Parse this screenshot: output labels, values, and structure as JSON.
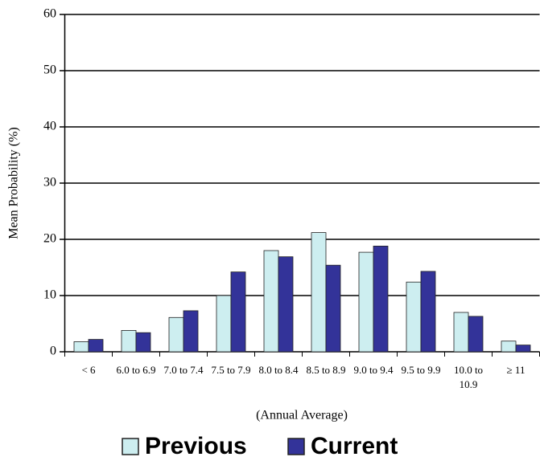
{
  "chart_data": {
    "type": "bar",
    "categories": [
      "< 6",
      "6.0 to 6.9",
      "7.0 to 7.4",
      "7.5 to 7.9",
      "8.0 to 8.4",
      "8.5 to 8.9",
      "9.0 to 9.4",
      "9.5 to 9.9",
      "10.0 to 10.9",
      "≥ 11"
    ],
    "series": [
      {
        "name": "Previous",
        "color": "#cdeef0",
        "values": [
          1.8,
          3.8,
          6.1,
          10,
          18,
          21.2,
          17.7,
          12.4,
          7,
          1.9
        ]
      },
      {
        "name": "Current",
        "color": "#333399",
        "values": [
          2.2,
          3.4,
          7.3,
          14.2,
          16.9,
          15.4,
          18.8,
          14.3,
          6.3,
          1.2
        ]
      }
    ],
    "ylim": [
      0,
      60
    ],
    "yticks": [
      0,
      10,
      20,
      30,
      40,
      50,
      60
    ],
    "grid": true,
    "y_label": "Mean Probability (%)",
    "x_label": "(Annual Average)"
  }
}
